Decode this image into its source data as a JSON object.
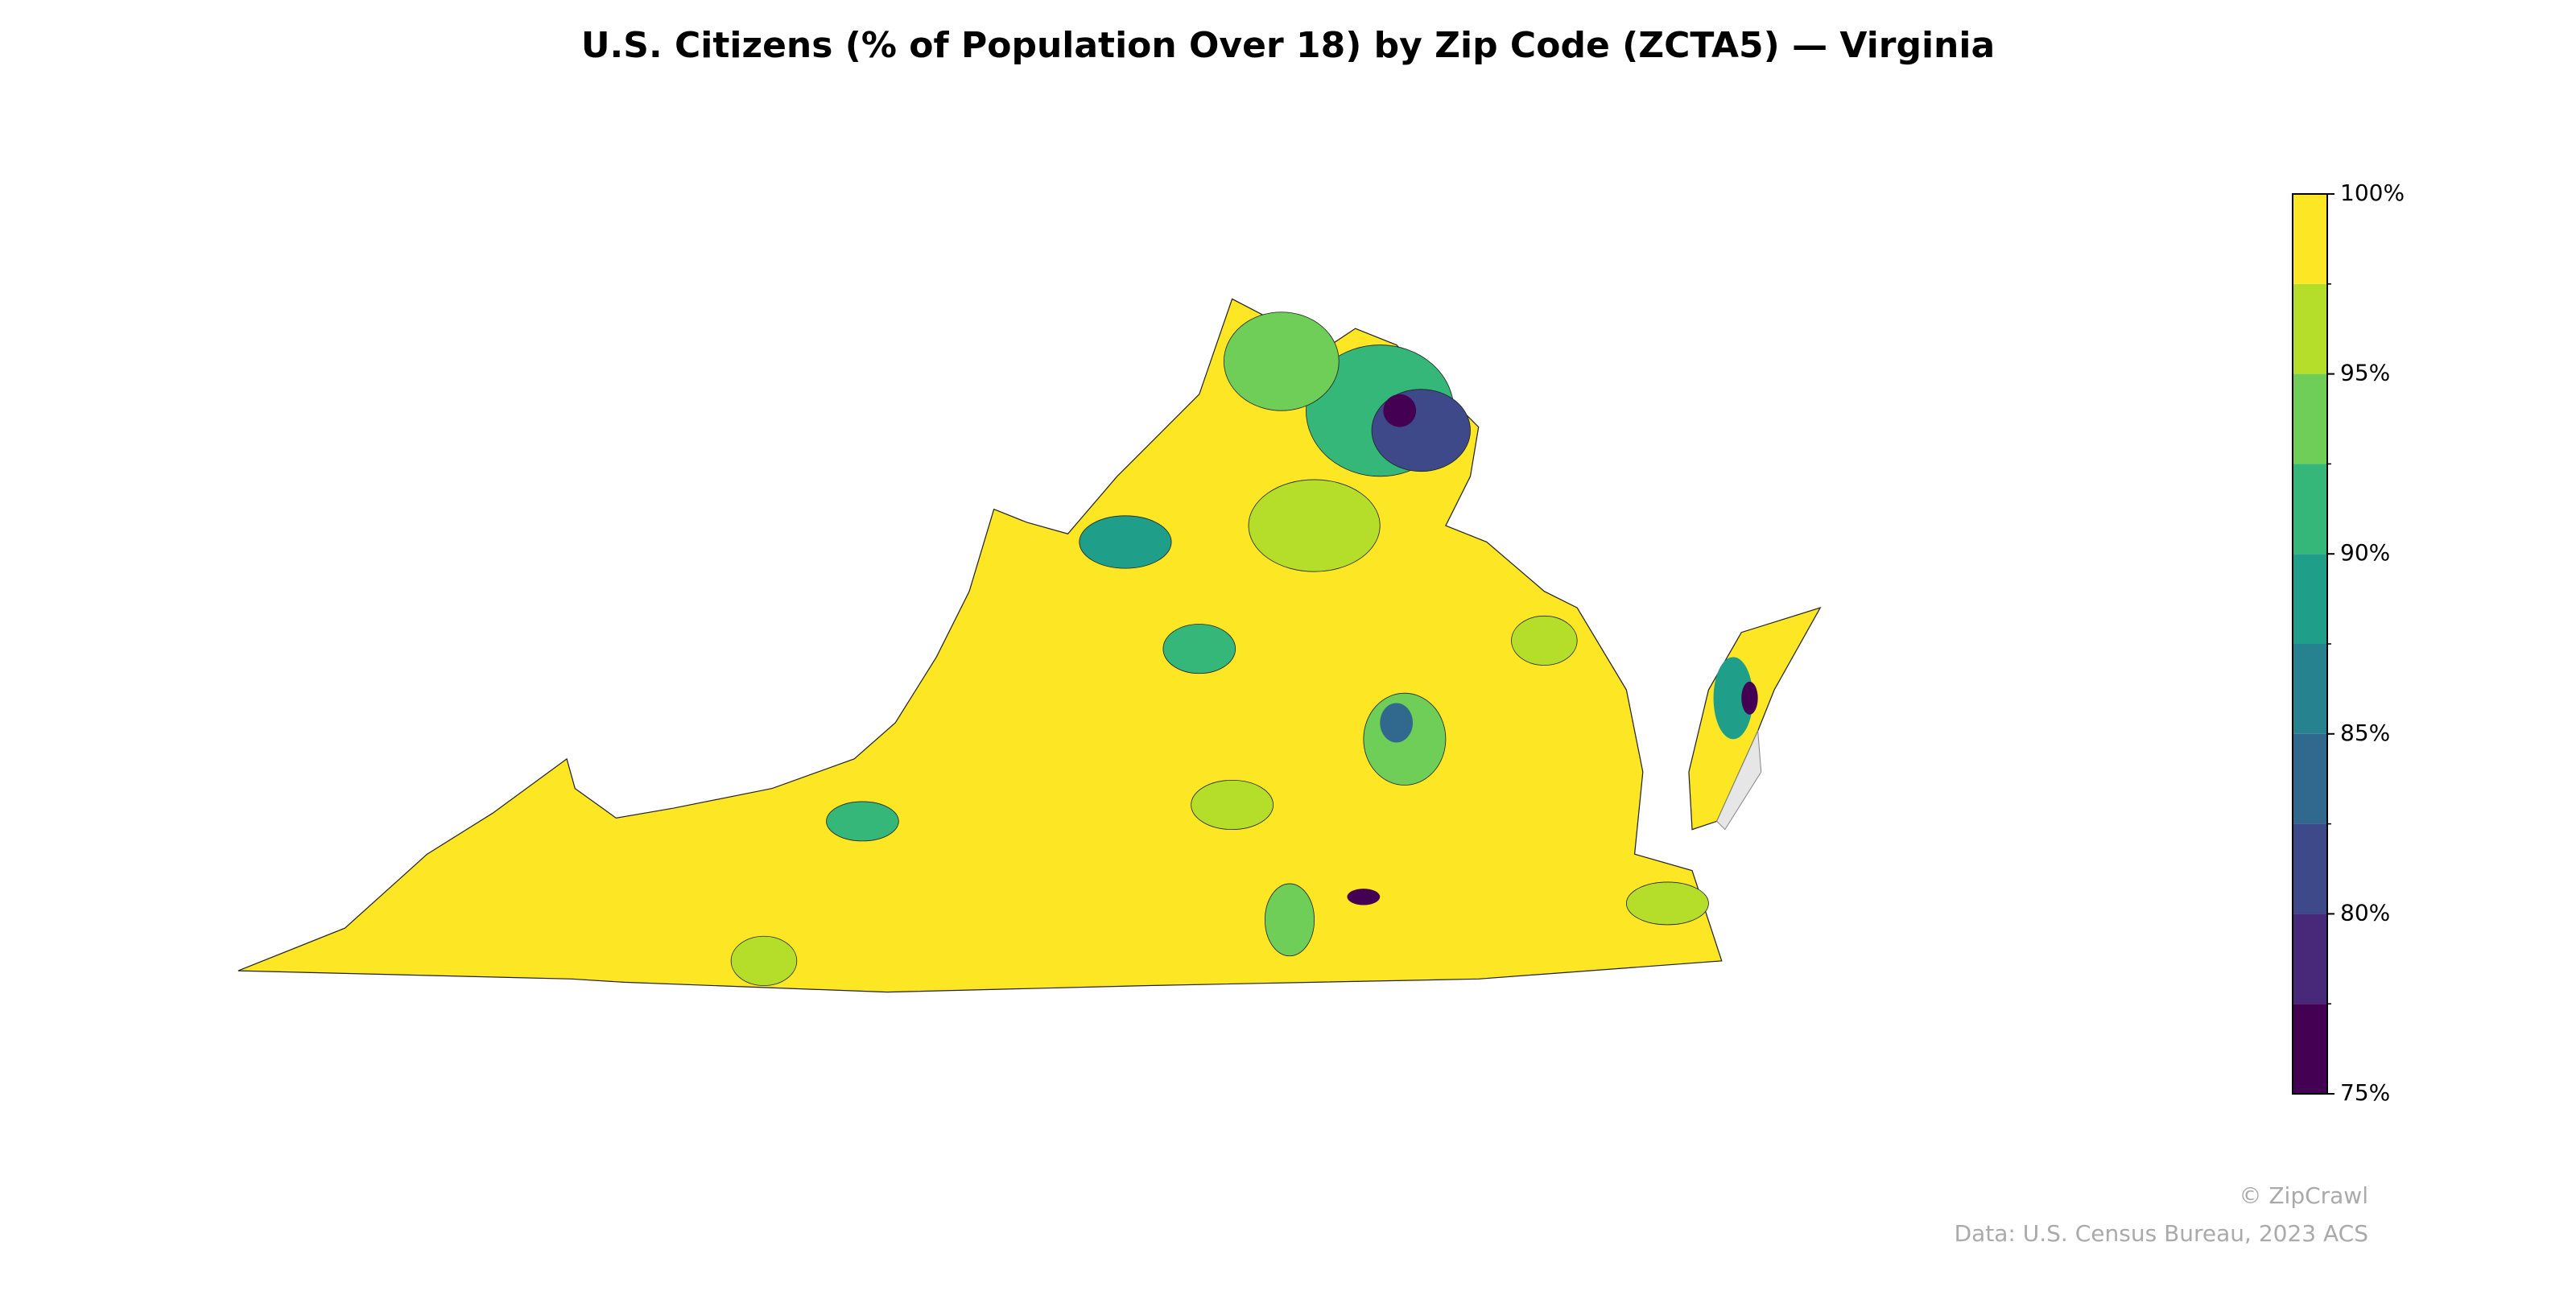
{
  "title": "U.S. Citizens (% of Population Over 18) by Zip Code (ZCTA5) — Virginia",
  "colorbar": {
    "lim": [
      75,
      100
    ],
    "bounds": [
      75,
      77.5,
      80,
      82.5,
      85,
      87.5,
      90,
      92.5,
      95,
      97.5,
      100
    ],
    "colors": [
      "#440154",
      "#482878",
      "#3e4989",
      "#31688e",
      "#26828e",
      "#1f9e89",
      "#35b779",
      "#6ece58",
      "#b5de2b",
      "#fde725"
    ],
    "ticks": [
      {
        "value": 75,
        "label": "75%"
      },
      {
        "value": 80,
        "label": "80%"
      },
      {
        "value": 85,
        "label": "85%"
      },
      {
        "value": 90,
        "label": "90%"
      },
      {
        "value": 95,
        "label": "95%"
      },
      {
        "value": 100,
        "label": "100%"
      }
    ]
  },
  "credits": [
    "© ZipCrawl",
    "Data: U.S. Census Bureau, 2023 ACS"
  ]
}
